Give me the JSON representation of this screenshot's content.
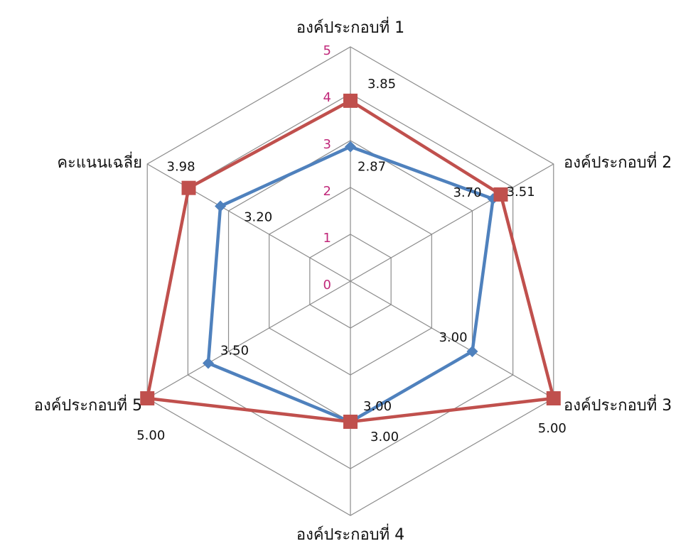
{
  "chart_data": {
    "type": "radar",
    "categories": [
      "องค์ประกอบที่ 1",
      "องค์ประกอบที่ 2",
      "องค์ประกอบที่ 3",
      "องค์ประกอบที่ 4",
      "องค์ประกอบที่ 5",
      "คะแนนเฉลี่ย"
    ],
    "rlim": [
      0,
      5
    ],
    "ticks": [
      "0",
      "1",
      "2",
      "3",
      "4",
      "5"
    ],
    "grid": true,
    "tick_color": "#c0287a",
    "series": [
      {
        "color": "#4f81bd",
        "marker": "diamond",
        "values": [
          2.87,
          3.51,
          3.0,
          3.0,
          3.5,
          3.2
        ],
        "labels": [
          "2.87",
          "3.51",
          "3.00",
          "3.00",
          "3.50",
          "3.20"
        ]
      },
      {
        "color": "#c0504d",
        "marker": "square",
        "values": [
          3.85,
          3.7,
          5.0,
          3.0,
          5.0,
          3.98
        ],
        "labels": [
          "3.85",
          "3.70",
          "5.00",
          "3.00",
          "5.00",
          "3.98"
        ]
      }
    ]
  }
}
